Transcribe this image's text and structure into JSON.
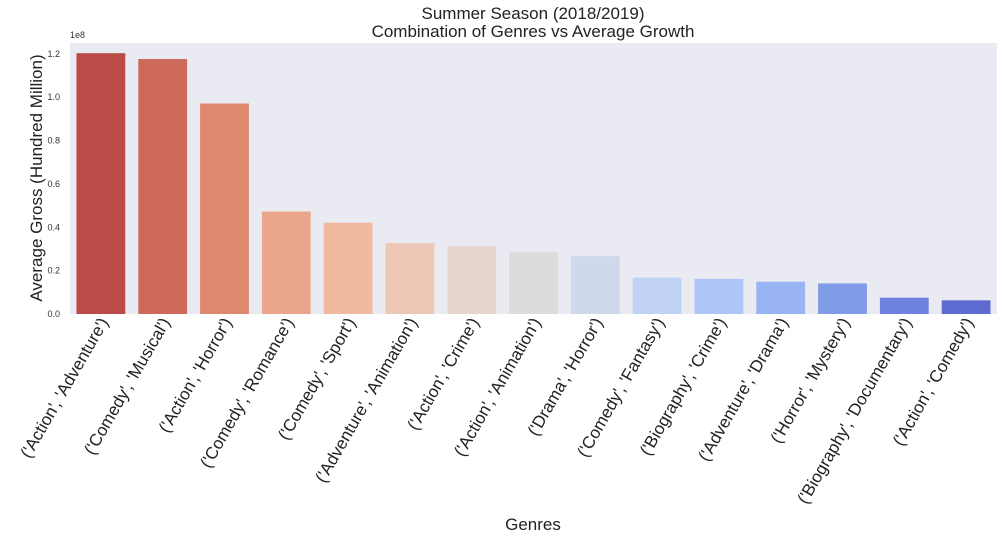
{
  "chart_data": {
    "type": "bar",
    "title": "Summer Season (2018/2019)",
    "subtitle": "Combination of Genres vs Average Growth",
    "xlabel": "Genres",
    "ylabel": "Average Gross (Hundred Million)",
    "y_offset_text": "1e8",
    "ylim": [
      0,
      1.25
    ],
    "yticks": [
      "0.0",
      "0.2",
      "0.4",
      "0.6",
      "0.8",
      "1.0",
      "1.2"
    ],
    "grid": false,
    "categories": [
      "('Action', 'Adventure')",
      "('Comedy', 'Musical')",
      "('Action', 'Horror')",
      "('Comedy', 'Romance')",
      "('Comedy', 'Sport')",
      "('Adventure', 'Animation')",
      "('Action', 'Crime')",
      "('Action', 'Animation')",
      "('Drama', 'Horror')",
      "('Comedy', 'Fantasy')",
      "('Biography', 'Crime')",
      "('Adventure', 'Drama')",
      "('Horror', 'Mystery')",
      "('Biography', 'Documentary')",
      "('Action', 'Comedy')"
    ],
    "values": [
      1.203,
      1.176,
      0.971,
      0.473,
      0.421,
      0.327,
      0.314,
      0.285,
      0.267,
      0.168,
      0.162,
      0.149,
      0.141,
      0.075,
      0.063
    ],
    "colors": [
      "#bb4b46",
      "#cd6a5c",
      "#df876f",
      "#eaa68b",
      "#f0b9a0",
      "#eec8b7",
      "#e6d6cf",
      "#dcddda",
      "#cfd9eb",
      "#c1d3f5",
      "#adc6f7",
      "#98b4f5",
      "#819ce7",
      "#6e82df",
      "#5e6cd2"
    ]
  }
}
